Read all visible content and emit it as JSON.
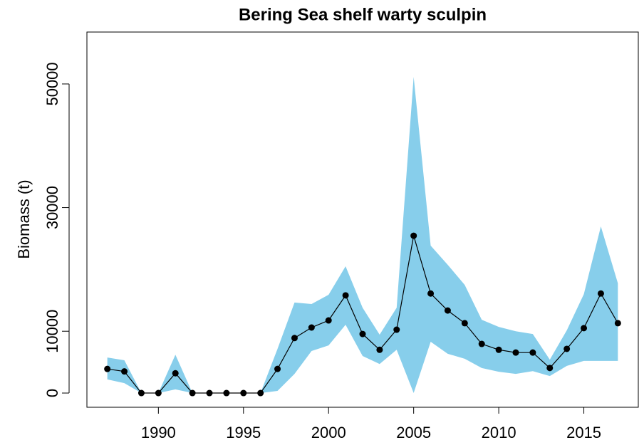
{
  "chart_data": {
    "type": "line",
    "title": "Bering Sea shelf warty sculpin",
    "y_label": "Biomass (t)",
    "x": [
      1987,
      1988,
      1989,
      1990,
      1991,
      1992,
      1993,
      1994,
      1995,
      1996,
      1997,
      1998,
      1999,
      2000,
      2001,
      2002,
      2003,
      2004,
      2005,
      2006,
      2007,
      2008,
      2009,
      2010,
      2011,
      2012,
      2013,
      2014,
      2015,
      2016,
      2017
    ],
    "values": [
      3900,
      3500,
      0,
      0,
      3200,
      0,
      0,
      0,
      0,
      0,
      3900,
      8900,
      10600,
      11750,
      15800,
      9550,
      7000,
      10250,
      25450,
      16100,
      13350,
      11300,
      7950,
      7000,
      6550,
      6550,
      4050,
      7150,
      10500,
      16100,
      11300
    ],
    "band_upper": [
      5750,
      5300,
      0,
      0,
      6200,
      0,
      0,
      0,
      0,
      0,
      7150,
      14650,
      14400,
      15900,
      20500,
      13800,
      9450,
      13800,
      51150,
      23850,
      20750,
      17500,
      11850,
      10700,
      10000,
      9550,
      5400,
      10150,
      16000,
      26950,
      17750
    ],
    "band_lower": [
      2200,
      1600,
      0,
      0,
      600,
      0,
      0,
      0,
      0,
      0,
      350,
      3100,
      6800,
      7700,
      11050,
      6000,
      4700,
      7000,
      0,
      8300,
      6350,
      5550,
      4050,
      3450,
      3100,
      3550,
      2750,
      4400,
      5200,
      5200,
      5200
    ],
    "color": "#000000",
    "band_color": "#87ceeb",
    "xlim": [
      1985.8,
      2018.2
    ],
    "ylim": [
      -2300,
      58400
    ],
    "xticks": [
      1990,
      1995,
      2000,
      2005,
      2010,
      2015
    ],
    "yticks": [
      0,
      10000,
      30000,
      50000
    ]
  }
}
